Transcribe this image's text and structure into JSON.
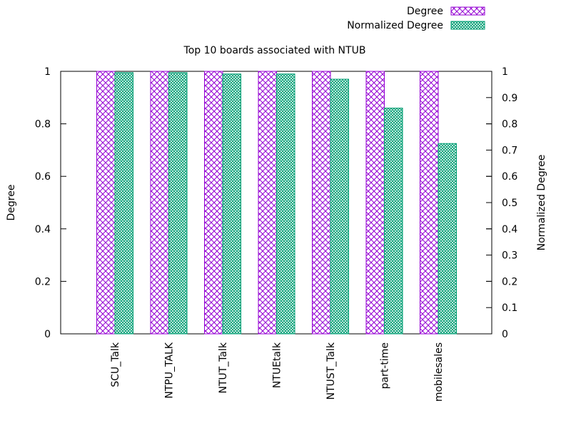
{
  "chart_data": {
    "type": "bar",
    "title": "Top 10 boards associated with NTUB",
    "xlabel": "",
    "ylabel": "Degree",
    "y2label": "Normalized Degree",
    "categories": [
      "SCU_Talk",
      "NTPU_TALK",
      "NTUT_Talk",
      "NTUEtalk",
      "NTUST_Talk",
      "part-time",
      "mobilesales"
    ],
    "ylim": [
      0,
      1
    ],
    "y2lim": [
      0,
      1
    ],
    "yticks": [
      "0",
      "0.2",
      "0.4",
      "0.6",
      "0.8",
      "1"
    ],
    "y2ticks": [
      "0",
      "0.1",
      "0.2",
      "0.3",
      "0.4",
      "0.5",
      "0.6",
      "0.7",
      "0.8",
      "0.9",
      "1"
    ],
    "grid": false,
    "legend_position": "top-right",
    "series": [
      {
        "name": "Degree",
        "axis": "left",
        "color": "#9400d3",
        "pattern": "crosshatch",
        "values": [
          1,
          1,
          1,
          1,
          1,
          1,
          1
        ]
      },
      {
        "name": "Normalized Degree",
        "axis": "right",
        "color": "#009e73",
        "pattern": "fine-crosshatch",
        "values": [
          0.995,
          0.995,
          0.99,
          0.99,
          0.97,
          0.86,
          0.725
        ]
      }
    ]
  }
}
